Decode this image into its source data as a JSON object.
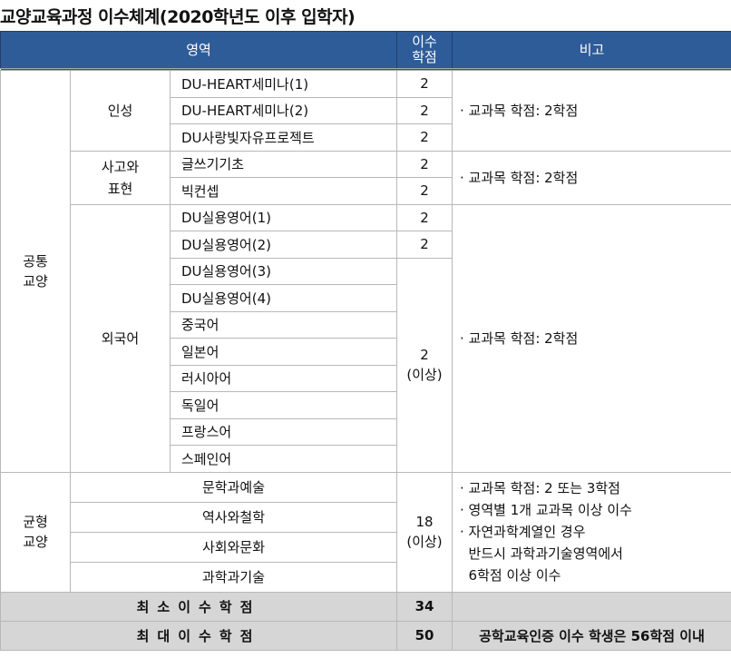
{
  "title": "교양교육과정 이수체계(2020학년도 이후 입학자)",
  "header": {
    "area": "영역",
    "credits": "이수\n학점",
    "note": "비고"
  },
  "common": {
    "label": "공통\n교양",
    "insung": {
      "label": "인성",
      "courses": [
        "DU-HEART세미나(1)",
        "DU-HEART세미나(2)",
        "DU사랑빛자유프로젝트"
      ],
      "credits": [
        "2",
        "2",
        "2"
      ],
      "note": "· 교과목 학점: 2학점"
    },
    "sago": {
      "label": "사고와\n표현",
      "courses": [
        "글쓰기기초",
        "빅컨셉"
      ],
      "credits": [
        "2",
        "2"
      ],
      "note": "· 교과목 학점: 2학점"
    },
    "foreign": {
      "label": "외국어",
      "courses": [
        "DU실용영어(1)",
        "DU실용영어(2)",
        "DU실용영어(3)",
        "DU실용영어(4)",
        "중국어",
        "일본어",
        "러시아어",
        "독일어",
        "프랑스어",
        "스페인어"
      ],
      "credits": [
        "2",
        "2",
        "2\n(이상)"
      ],
      "note": "· 교과목 학점: 2학점"
    }
  },
  "balance": {
    "label": "균형\n교양",
    "areas": [
      "문학과예술",
      "역사와철학",
      "사회와문화",
      "과학과기술"
    ],
    "credits": "18\n(이상)",
    "notes": [
      "· 교과목 학점: 2 또는 3학점",
      "· 영역별 1개 교과목 이상 이수",
      "· 자연과학계열인 경우",
      "  반드시 과학과기술영역에서",
      "  6학점 이상 이수"
    ]
  },
  "totals": [
    {
      "label": "최소이수학점",
      "credits": "34",
      "note": ""
    },
    {
      "label": "최대이수학점",
      "credits": "50",
      "note": "공학교육인증 이수 학생은 56학점 이내"
    }
  ]
}
